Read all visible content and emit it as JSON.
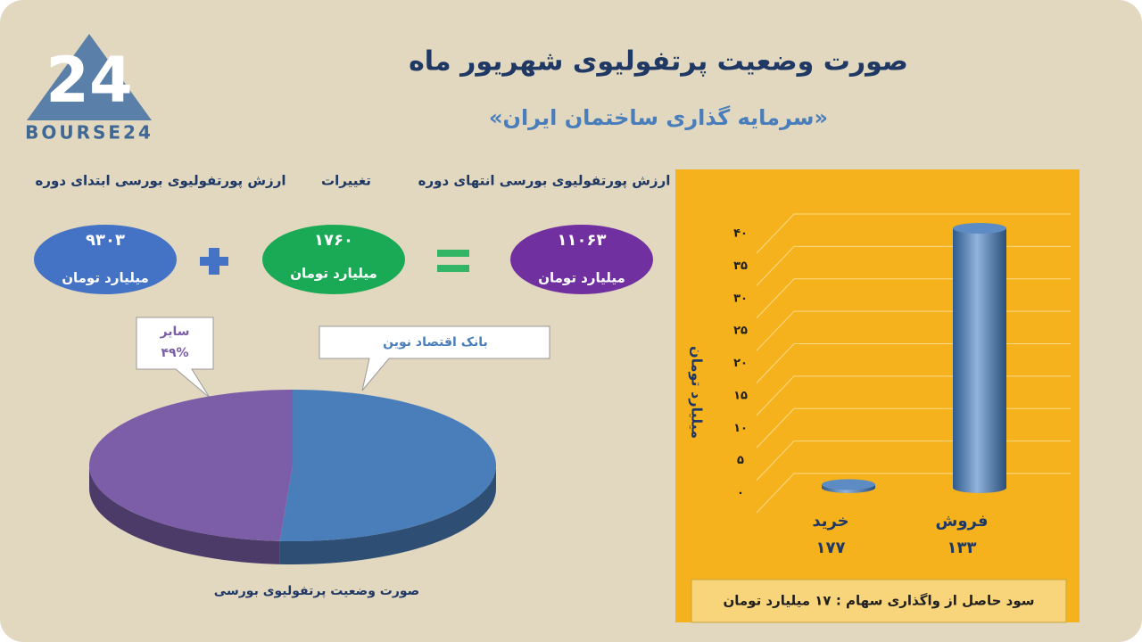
{
  "logo": {
    "mark": "24",
    "name": "BOURSE24"
  },
  "header": {
    "title": "صورت وضعیت پرتفولیوی شهریور ماه",
    "subtitle": "«سرمایه گذاری ساختمان ایران»"
  },
  "summary": {
    "items": [
      {
        "heading": "ارزش پورتفولیوی بورسی ابتدای دوره",
        "value": "۹۳۰۳",
        "unit": "میلیارد تومان"
      },
      {
        "heading": "تغییرات",
        "value": "۱۷۶۰",
        "unit": "میلیارد تومان"
      },
      {
        "heading": "ارزش پورتفولیوی بورسی انتهای دوره",
        "value": "۱۱۰۶۳",
        "unit": "میلیارد تومان"
      }
    ]
  },
  "chart_data": [
    {
      "type": "pie",
      "title": "صورت وضعیت پرتفولیوی بورسی",
      "categories": [
        "سایر",
        "بانک اقتصاد نوین"
      ],
      "values": [
        49,
        51
      ],
      "value_labels": [
        "۴۹%",
        null
      ],
      "colors": [
        "#7b5ea7",
        "#4a7ebb"
      ]
    },
    {
      "type": "bar",
      "y_label": "میلیارد تومان",
      "categories": [
        "خرید",
        "فروش"
      ],
      "category_notes": [
        "۱۷۷",
        "۱۳۳"
      ],
      "values": [
        0.5,
        40
      ],
      "color": "#4a7ebb",
      "ylim": [
        0,
        40
      ],
      "yticks": [
        {
          "value": 0,
          "label": "۰"
        },
        {
          "value": 5,
          "label": "۵"
        },
        {
          "value": 10,
          "label": "۱۰"
        },
        {
          "value": 15,
          "label": "۱۵"
        },
        {
          "value": 20,
          "label": "۲۰"
        },
        {
          "value": 25,
          "label": "۲۵"
        },
        {
          "value": 30,
          "label": "۳۰"
        },
        {
          "value": 35,
          "label": "۳۵"
        },
        {
          "value": 40,
          "label": "۴۰"
        }
      ],
      "grid": true
    }
  ],
  "footer_note": "سود حاصل از واگذاری سهام : ۱۷ میلیارد تومان"
}
